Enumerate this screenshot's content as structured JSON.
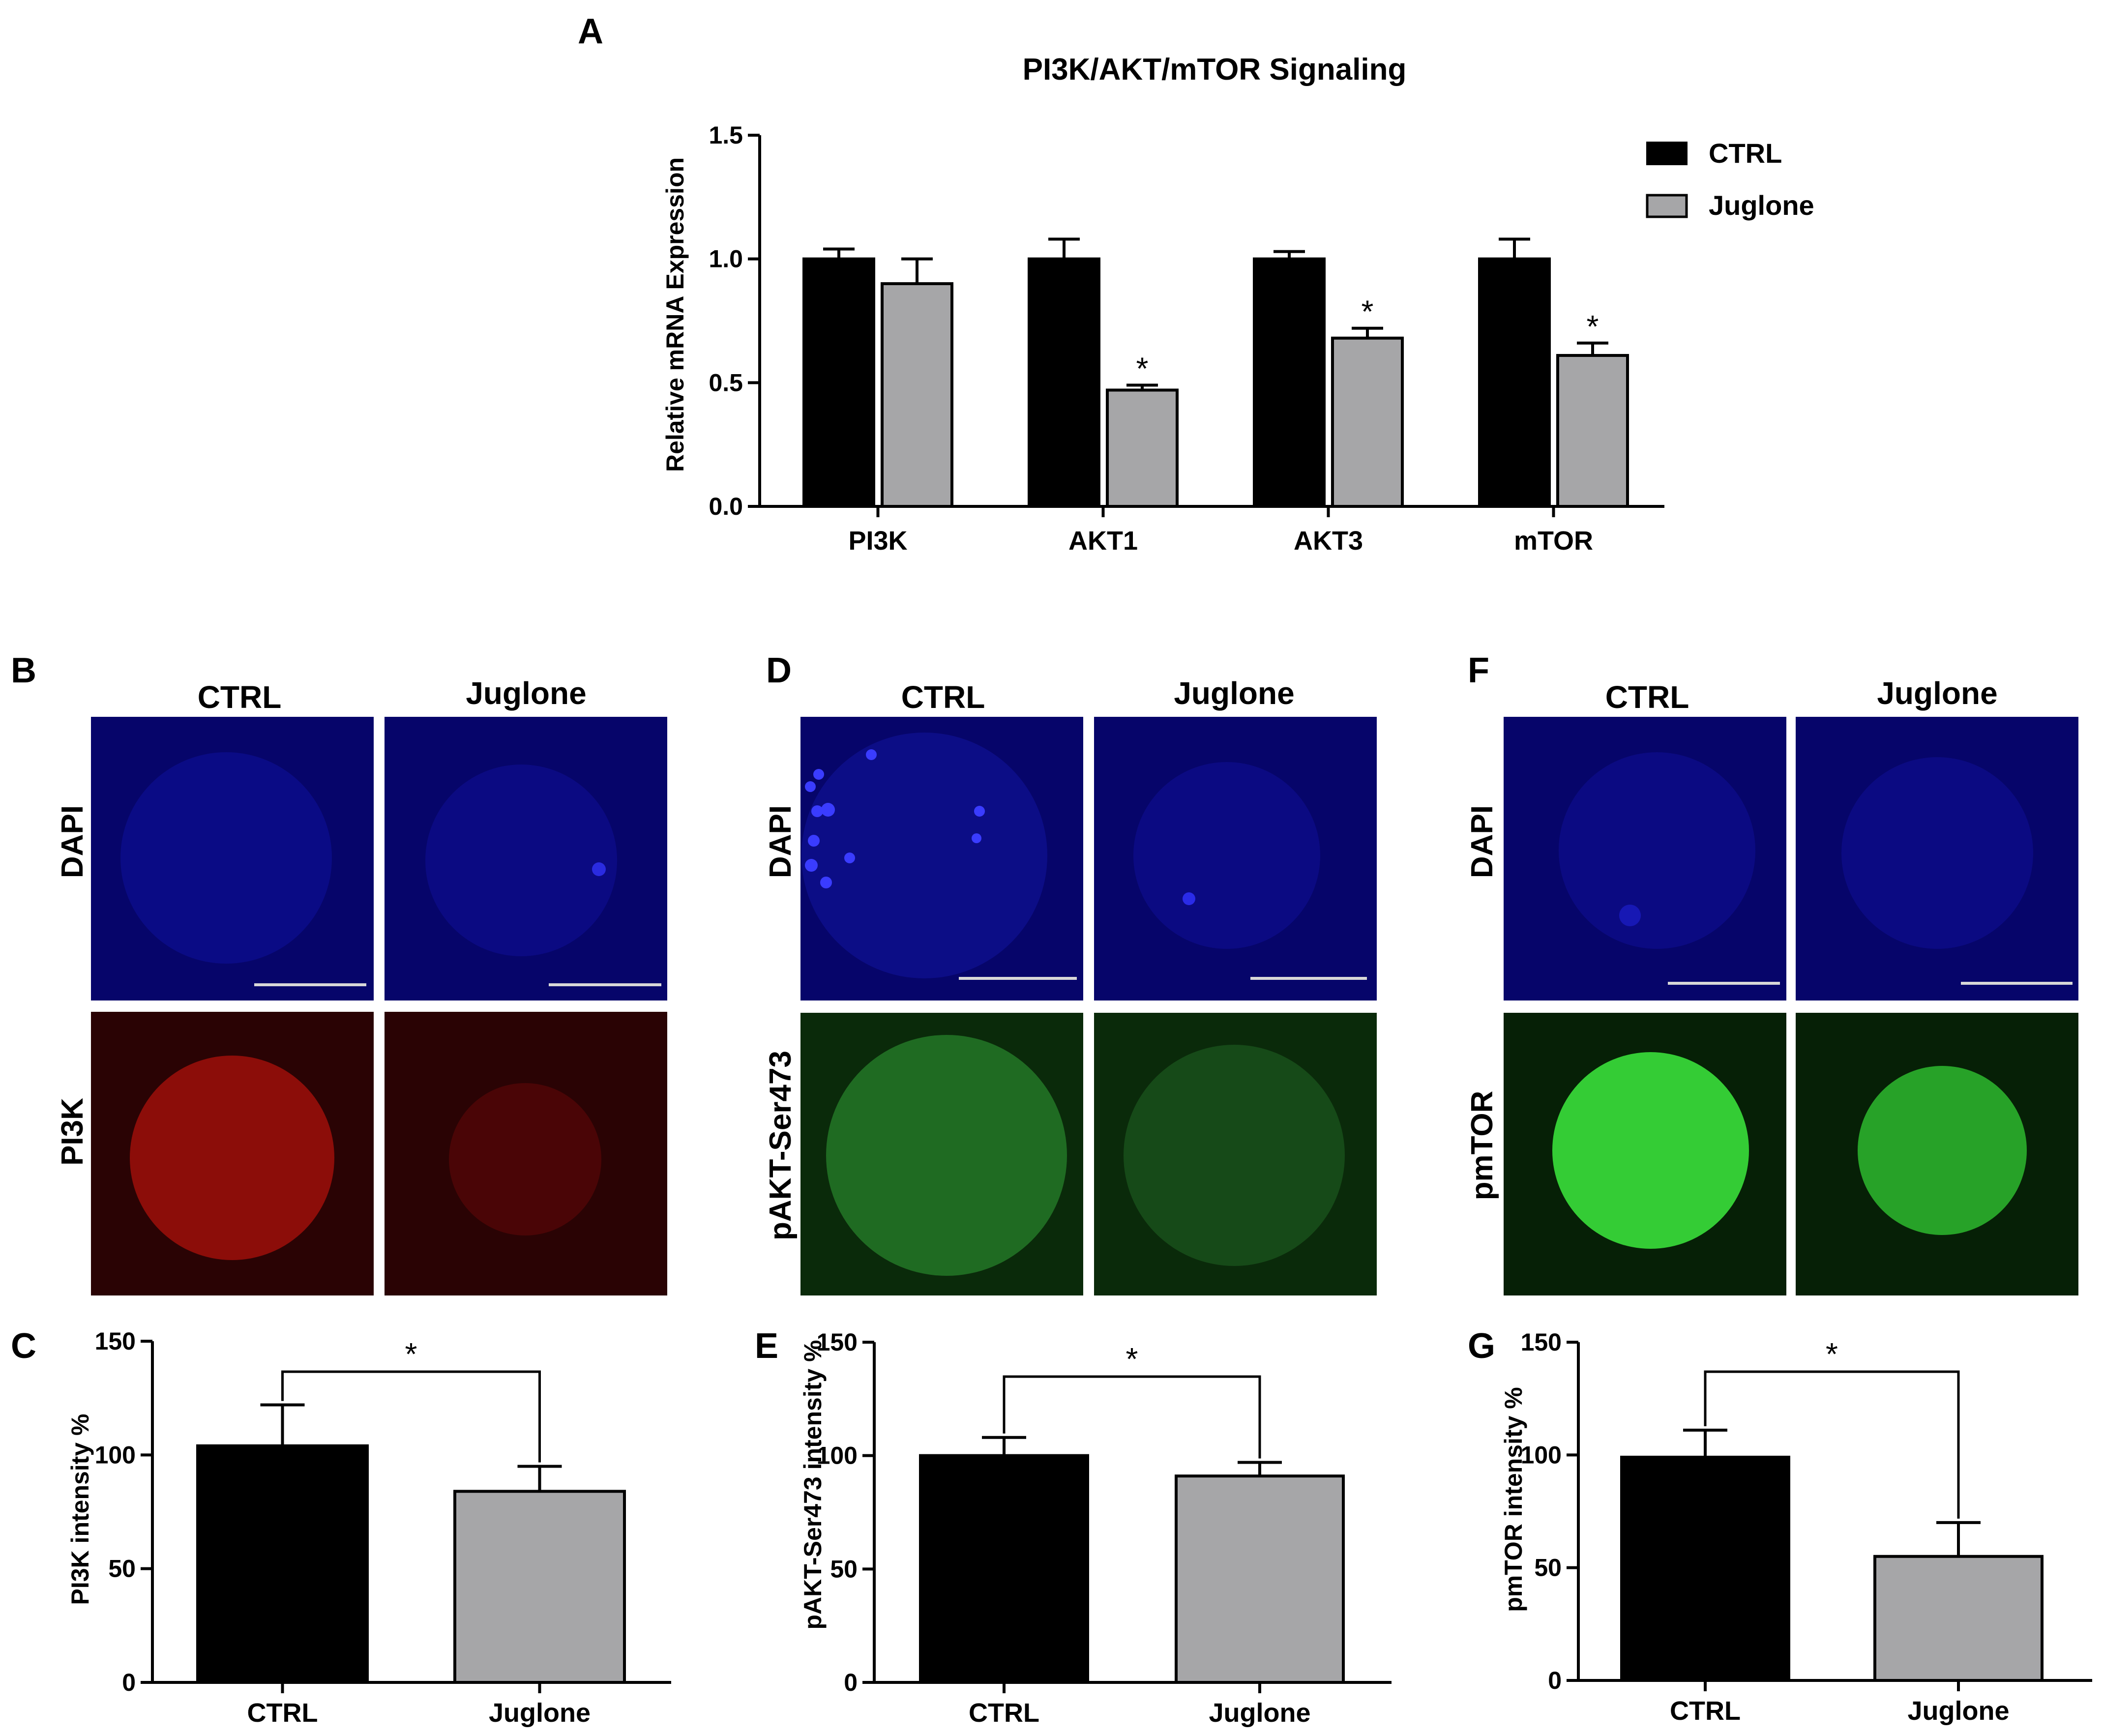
{
  "colors": {
    "ctrl": "#000000",
    "juglone": "#a6a6a8",
    "dapi_bg": "#06056a",
    "dapi_cell": "#12149a",
    "pi3k_bg": "#2a0304",
    "pi3k_ctrl_cell": "#8c0d09",
    "pi3k_jug_cell": "#4a0506",
    "pakt_bg": "#0a2a0a",
    "pakt_ctrl_cell": "#1f6b22",
    "pakt_jug_cell": "#164a18",
    "pmtor_bg": "#062006",
    "pmtor_ctrl_cell": "#34cc35",
    "pmtor_jug_cell": "#27a228",
    "scale_bar": "#d8d8d8"
  },
  "panels": {
    "a": "A",
    "b": "B",
    "c": "C",
    "d": "D",
    "e": "E",
    "f": "F",
    "g": "G"
  },
  "imaging": {
    "groups": [
      {
        "ctrl_label": "CTRL",
        "jug_label": "Juglone",
        "row1_label": "DAPI",
        "row2_label": "PI3K"
      },
      {
        "ctrl_label": "CTRL",
        "jug_label": "Juglone",
        "row1_label": "DAPI",
        "row2_label": "pAKT-Ser473"
      },
      {
        "ctrl_label": "CTRL",
        "jug_label": "Juglone",
        "row1_label": "DAPI",
        "row2_label": "pmTOR"
      }
    ]
  },
  "chart_data": [
    {
      "type": "bar",
      "title": "PI3K/AKT/mTOR Signaling",
      "xlabel": "",
      "ylabel": "Relative mRNA Expression",
      "ylim": [
        0,
        1.5
      ],
      "yticks": [
        0.0,
        0.5,
        1.0,
        1.5
      ],
      "ytick_labels": [
        "0.0",
        "0.5",
        "1.0",
        "1.5"
      ],
      "categories": [
        "PI3K",
        "AKT1",
        "AKT3",
        "mTOR"
      ],
      "series": [
        {
          "name": "CTRL",
          "values": [
            1.0,
            1.0,
            1.0,
            1.0
          ],
          "errors": [
            0.04,
            0.08,
            0.03,
            0.08
          ]
        },
        {
          "name": "Juglone",
          "values": [
            0.9,
            0.47,
            0.68,
            0.61
          ],
          "errors": [
            0.1,
            0.02,
            0.04,
            0.05
          ]
        }
      ],
      "significance": [
        "",
        "*",
        "*",
        "*"
      ],
      "legend": "top-right"
    },
    {
      "type": "bar",
      "title": "",
      "xlabel": "",
      "ylabel": "PI3K intensity %",
      "ylim": [
        0,
        150
      ],
      "yticks": [
        0,
        50,
        100,
        150
      ],
      "ytick_labels": [
        "0",
        "50",
        "100",
        "150"
      ],
      "categories": [
        "CTRL",
        "Juglone"
      ],
      "values": [
        104,
        84
      ],
      "errors": [
        18,
        11
      ],
      "significance": "*"
    },
    {
      "type": "bar",
      "title": "",
      "xlabel": "",
      "ylabel": "pAKT-Ser473 intensity %",
      "ylim": [
        0,
        150
      ],
      "yticks": [
        0,
        50,
        100,
        150
      ],
      "ytick_labels": [
        "0",
        "50",
        "100",
        "150"
      ],
      "categories": [
        "CTRL",
        "Juglone"
      ],
      "values": [
        100,
        91
      ],
      "errors": [
        8,
        6
      ],
      "significance": "*"
    },
    {
      "type": "bar",
      "title": "",
      "xlabel": "",
      "ylabel": "pmTOR intensity %",
      "ylim": [
        0,
        150
      ],
      "yticks": [
        0,
        50,
        100,
        150
      ],
      "ytick_labels": [
        "0",
        "50",
        "100",
        "150"
      ],
      "categories": [
        "CTRL",
        "Juglone"
      ],
      "values": [
        99,
        55
      ],
      "errors": [
        12,
        15
      ],
      "significance": "*"
    }
  ]
}
